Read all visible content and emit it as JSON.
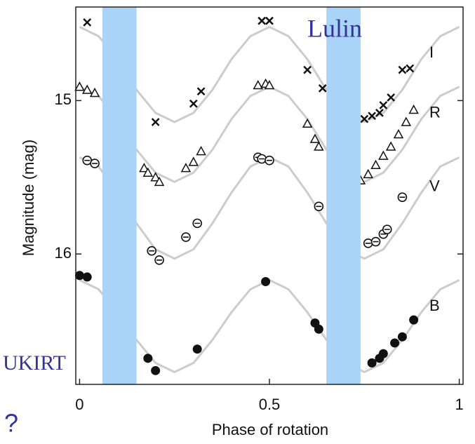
{
  "chart_data": {
    "type": "scatter",
    "xlabel": "Phase of rotation",
    "ylabel": "Magnitude (mag)",
    "xlim": [
      -0.01,
      1.01
    ],
    "xticks": [
      0,
      0.5,
      1
    ],
    "ylim": [
      14.39,
      16.85
    ],
    "yticks": [
      15,
      16
    ],
    "y_inverted": true,
    "shaded_regions": [
      [
        0.06,
        0.15
      ],
      [
        0.65,
        0.74
      ]
    ],
    "shade_color": "#a9d3f7",
    "fit_color": "#cccccc",
    "annotations": [
      "Lulin",
      "UKIRT",
      "?"
    ],
    "fit_x": [
      0,
      0.05,
      0.1,
      0.15,
      0.2,
      0.25,
      0.3,
      0.35,
      0.4,
      0.45,
      0.5,
      0.55,
      0.6,
      0.65,
      0.7,
      0.75,
      0.8,
      0.85,
      0.9,
      0.95,
      1
    ],
    "series": [
      {
        "name": "I",
        "marker": "x",
        "color": "#111111",
        "x": [
          0.02,
          0.2,
          0.3,
          0.32,
          0.48,
          0.5,
          0.6,
          0.64,
          0.75,
          0.77,
          0.79,
          0.8,
          0.82,
          0.85,
          0.87
        ],
        "values": [
          14.49,
          15.14,
          15.02,
          14.94,
          14.48,
          14.48,
          14.8,
          14.92,
          15.12,
          15.1,
          15.08,
          15.03,
          14.98,
          14.8,
          14.79
        ],
        "fit": [
          14.52,
          14.58,
          14.73,
          14.93,
          15.08,
          15.14,
          15.08,
          14.93,
          14.73,
          14.58,
          14.52,
          14.58,
          14.73,
          14.93,
          15.08,
          15.14,
          15.08,
          14.93,
          14.73,
          14.58,
          14.52
        ]
      },
      {
        "name": "R",
        "marker": "triangle",
        "color": "#111111",
        "x": [
          0,
          0.02,
          0.04,
          0.17,
          0.18,
          0.2,
          0.21,
          0.28,
          0.3,
          0.32,
          0.47,
          0.49,
          0.5,
          0.6,
          0.62,
          0.63,
          0.74,
          0.76,
          0.78,
          0.8,
          0.82,
          0.84,
          0.86,
          0.88
        ],
        "values": [
          14.91,
          14.93,
          14.95,
          15.44,
          15.47,
          15.5,
          15.53,
          15.44,
          15.4,
          15.33,
          14.9,
          14.89,
          14.9,
          15.15,
          15.25,
          15.3,
          15.52,
          15.48,
          15.42,
          15.36,
          15.3,
          15.22,
          15.14,
          15.06
        ],
        "fit": [
          14.91,
          14.97,
          15.12,
          15.32,
          15.47,
          15.53,
          15.47,
          15.32,
          15.12,
          14.97,
          14.91,
          14.97,
          15.12,
          15.32,
          15.47,
          15.53,
          15.47,
          15.32,
          15.12,
          14.97,
          14.91
        ]
      },
      {
        "name": "V",
        "marker": "circle-bar",
        "color": "#111111",
        "x": [
          0.02,
          0.04,
          0.19,
          0.21,
          0.28,
          0.31,
          0.47,
          0.48,
          0.5,
          0.63,
          0.76,
          0.78,
          0.8,
          0.81,
          0.85
        ],
        "values": [
          15.39,
          15.41,
          15.98,
          16.04,
          15.89,
          15.8,
          15.37,
          15.38,
          15.39,
          15.69,
          15.93,
          15.92,
          15.87,
          15.84,
          15.63
        ],
        "fit": [
          15.37,
          15.43,
          15.6,
          15.8,
          15.97,
          16.03,
          15.97,
          15.8,
          15.6,
          15.43,
          15.37,
          15.43,
          15.6,
          15.8,
          15.97,
          16.03,
          15.97,
          15.8,
          15.6,
          15.43,
          15.37
        ]
      },
      {
        "name": "B",
        "marker": "dot",
        "color": "#111111",
        "x": [
          0,
          0.02,
          0.18,
          0.2,
          0.31,
          0.49,
          0.62,
          0.63,
          0.77,
          0.79,
          0.8,
          0.83,
          0.85,
          0.88
        ],
        "values": [
          16.14,
          16.15,
          16.68,
          16.76,
          16.62,
          16.18,
          16.45,
          16.49,
          16.71,
          16.68,
          16.65,
          16.58,
          16.54,
          16.43
        ],
        "fit": [
          16.17,
          16.23,
          16.38,
          16.56,
          16.71,
          16.77,
          16.71,
          16.56,
          16.38,
          16.23,
          16.17,
          16.23,
          16.38,
          16.56,
          16.71,
          16.77,
          16.71,
          16.56,
          16.38,
          16.23,
          16.17
        ]
      }
    ]
  }
}
